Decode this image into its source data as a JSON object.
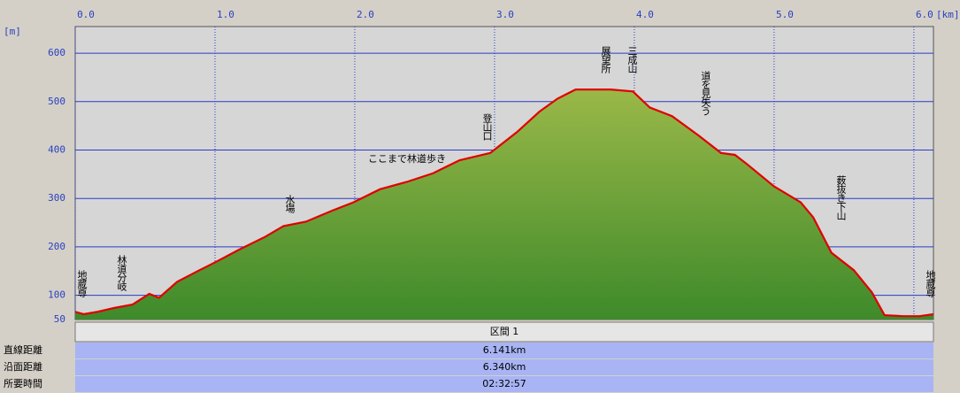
{
  "chart_data": {
    "type": "area",
    "y_unit": "[m]",
    "x_unit": "[km]",
    "x": [
      0,
      0.06,
      0.16,
      0.28,
      0.41,
      0.53,
      0.6,
      0.73,
      0.89,
      1.0,
      1.17,
      1.36,
      1.49,
      1.65,
      1.84,
      1.99,
      2.18,
      2.37,
      2.56,
      2.75,
      2.97,
      3.16,
      3.32,
      3.45,
      3.58,
      3.83,
      3.99,
      4.11,
      4.27,
      4.46,
      4.62,
      4.72,
      4.81,
      5.0,
      5.19,
      5.28,
      5.41,
      5.57,
      5.7,
      5.79,
      5.92,
      6.04,
      6.14
    ],
    "series": [
      {
        "color": "#e00000",
        "values": [
          66,
          61,
          66,
          74,
          81,
          103,
          95,
          128,
          152,
          168,
          194,
          221,
          243,
          252,
          275,
          292,
          319,
          334,
          352,
          379,
          394,
          437,
          479,
          506,
          525,
          525,
          521,
          488,
          470,
          430,
          394,
          390,
          370,
          325,
          292,
          261,
          188,
          152,
          106,
          59,
          57,
          57,
          61
        ]
      }
    ],
    "xlim": [
      0,
      6.14
    ],
    "ylim": [
      50,
      655
    ],
    "xticks": [
      {
        "value": 0,
        "label": "0.0"
      },
      {
        "value": 1,
        "label": "1.0"
      },
      {
        "value": 2,
        "label": "2.0"
      },
      {
        "value": 3,
        "label": "3.0"
      },
      {
        "value": 4,
        "label": "4.0"
      },
      {
        "value": 5,
        "label": "5.0"
      },
      {
        "value": 6,
        "label": "6.0"
      }
    ],
    "yticks": [
      50,
      100,
      200,
      300,
      400,
      500,
      600
    ],
    "grid": true,
    "annotations": [
      "地蔵尊",
      "林道分岐",
      "水場",
      "ここまで林道歩き",
      "登山口",
      "展望所",
      "三成山",
      "道を見失う",
      "薮抜き下山",
      "地蔵尊"
    ]
  },
  "table": {
    "header": "区間 1",
    "rows": [
      [
        "直線距離",
        "6.141km"
      ],
      [
        "沿面距離",
        "6.340km"
      ],
      [
        "所要時間",
        "02:32:57"
      ]
    ]
  }
}
